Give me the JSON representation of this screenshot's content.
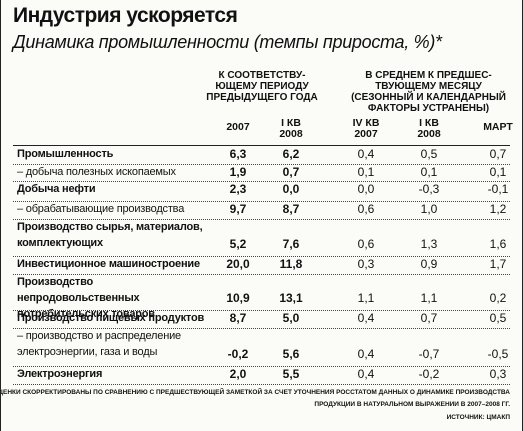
{
  "header": {
    "title": "Индустрия ускоряется",
    "subtitle": "Динамика промышленности (темпы прироста, %)*"
  },
  "table": {
    "groups": [
      {
        "lines": [
          "К СООТВЕТСТВУ-",
          "ЮЩЕМУ ПЕРИОДУ",
          "ПРЕДЫДУЩЕГО ГОДА"
        ]
      },
      {
        "lines": [
          "В СРЕДНЕМ К ПРЕДШЕС-",
          "ТВУЮЩЕМУ МЕСЯЦУ",
          "(СЕЗОННЫЙ И КАЛЕНДАРНЫЙ",
          "ФАКТОРЫ УСТРАНЕНЫ)"
        ]
      }
    ],
    "columns": [
      [
        "2007"
      ],
      [
        "I КВ",
        "2008"
      ],
      [
        "IV КВ",
        "2007"
      ],
      [
        "I КВ",
        "2008"
      ],
      [
        "МАРТ"
      ]
    ],
    "rows": [
      {
        "label": "Промышленность",
        "values": [
          "6,3",
          "6,2",
          "0,4",
          "0,5",
          "0,7"
        ]
      },
      {
        "label": "– добыча полезных ископаемых",
        "values": [
          "1,9",
          "0,7",
          "0,1",
          "0,1",
          "0,1"
        ]
      },
      {
        "label": "Добыча нефти",
        "values": [
          "2,3",
          "0,0",
          "0,0",
          "-0,3",
          "-0,1"
        ]
      },
      {
        "label": "– обрабатывающие производства",
        "values": [
          "9,7",
          "8,7",
          "0,6",
          "1,0",
          "1,2"
        ]
      },
      {
        "label": "Производство сырья, материалов, комплектующих",
        "values": [
          "5,2",
          "7,6",
          "0,6",
          "1,3",
          "1,6"
        ]
      },
      {
        "label": "Инвестиционное машиностроение",
        "values": [
          "20,0",
          "11,8",
          "0,3",
          "0,9",
          "1,7"
        ]
      },
      {
        "label": "Производство непродовольственных потребительских товаров",
        "values": [
          "10,9",
          "13,1",
          "1,1",
          "1,1",
          "0,2"
        ]
      },
      {
        "label": "Производство пищевых продуктов",
        "values": [
          "8,7",
          "5,0",
          "0,4",
          "0,7",
          "0,5"
        ]
      },
      {
        "label": "– производство и распределение электроэнергии, газа и воды",
        "values": [
          "-0,2",
          "5,6",
          "0,4",
          "-0,7",
          "-0,5"
        ]
      },
      {
        "label": "Электроэнергия",
        "values": [
          "2,0",
          "5,5",
          "0,4",
          "-0,2",
          "0,3"
        ]
      }
    ]
  },
  "footer": {
    "note": [
      "* ОЦЕНКИ СКОРРЕКТИРОВАНЫ ПО СРАВНЕНИЮ С ПРЕДШЕСТВУЮЩЕЙ ЗАМЕТКОЙ ЗА СЧЕТ УТОЧНЕНИЯ РОССТАТОМ ДАННЫХ О ДИНАМИКЕ ПРОИЗВОДСТВА",
      "ПРОДУКЦИИ В НАТУРАЛЬНОМ ВЫРАЖЕНИИ В 2007–2008 ГГ."
    ],
    "source": "ИСТОЧНИК: ЦМАКП"
  }
}
